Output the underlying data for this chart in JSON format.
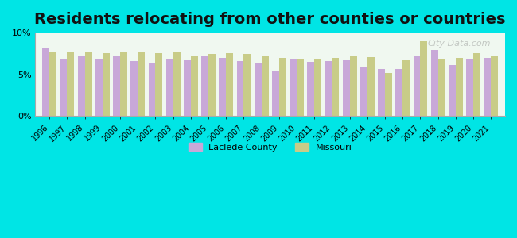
{
  "title": "Residents relocating from other counties or countries",
  "years": [
    1996,
    1997,
    1998,
    1999,
    2000,
    2001,
    2002,
    2003,
    2004,
    2005,
    2006,
    2007,
    2008,
    2009,
    2010,
    2011,
    2012,
    2013,
    2014,
    2015,
    2016,
    2017,
    2018,
    2019,
    2020,
    2021
  ],
  "laclede": [
    8.1,
    6.8,
    7.3,
    6.8,
    7.2,
    6.6,
    6.4,
    6.9,
    6.7,
    7.2,
    7.0,
    6.6,
    6.3,
    5.4,
    6.8,
    6.5,
    6.6,
    6.7,
    5.8,
    5.6,
    5.6,
    7.2,
    7.9,
    6.1,
    6.8,
    7.0
  ],
  "missouri": [
    7.6,
    7.6,
    7.7,
    7.5,
    7.6,
    7.6,
    7.5,
    7.6,
    7.3,
    7.4,
    7.5,
    7.4,
    7.3,
    7.0,
    6.9,
    6.9,
    7.0,
    7.2,
    7.1,
    5.2,
    6.7,
    9.0,
    6.9,
    7.0,
    7.5,
    7.3
  ],
  "laclede_color": "#c8a8d8",
  "missouri_color": "#c8cc88",
  "background_outer": "#00e5e5",
  "background_inner": "#f0f8f0",
  "ylim": [
    0,
    10
  ],
  "yticks": [
    0,
    5,
    10
  ],
  "ytick_labels": [
    "0%",
    "5%",
    "10%"
  ],
  "bar_width": 0.4,
  "legend_laclede": "Laclede County",
  "legend_missouri": "Missouri",
  "title_fontsize": 14,
  "watermark": "City-Data.com"
}
